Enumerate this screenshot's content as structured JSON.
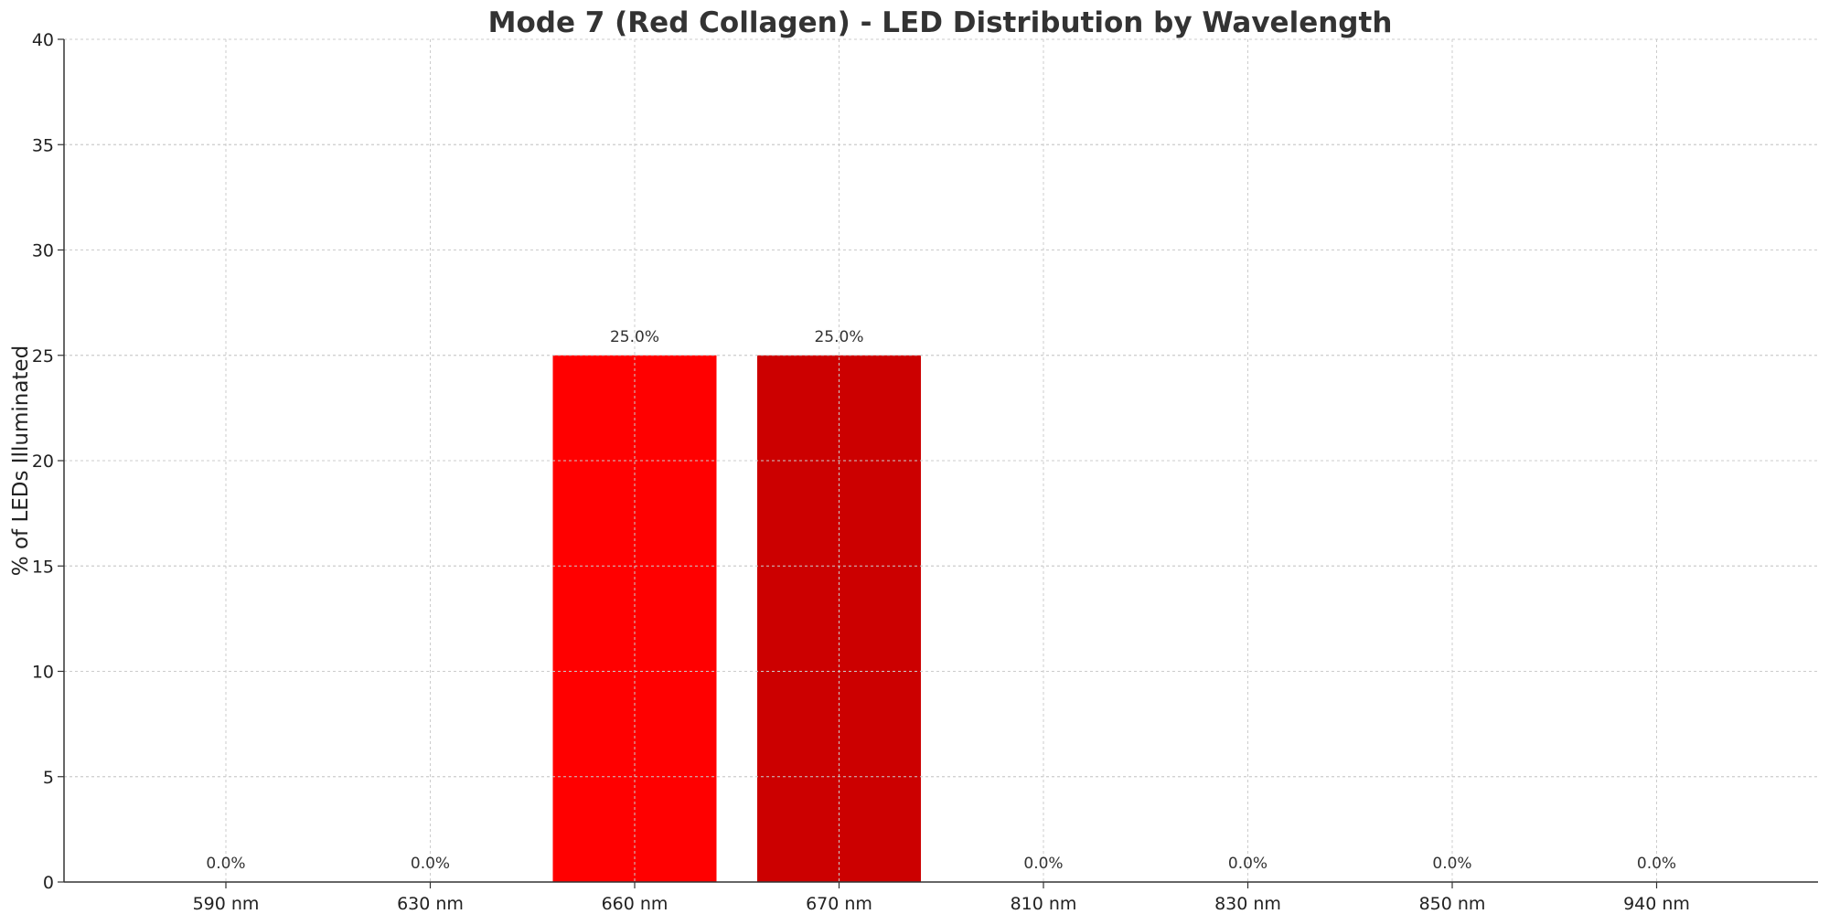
{
  "chart_data": {
    "type": "bar",
    "title": "Mode 7 (Red Collagen) - LED Distribution by Wavelength",
    "xlabel": "",
    "ylabel": "% of LEDs Illuminated",
    "categories": [
      "590 nm",
      "630 nm",
      "660 nm",
      "670 nm",
      "810 nm",
      "830 nm",
      "850 nm",
      "940 nm"
    ],
    "values": [
      0,
      0,
      25,
      25,
      0,
      0,
      0,
      0
    ],
    "data_labels": [
      "0.0%",
      "0.0%",
      "25.0%",
      "25.0%",
      "0.0%",
      "0.0%",
      "0.0%",
      "0.0%"
    ],
    "colors": [
      "#ffa500",
      "#ff4500",
      "#ff0000",
      "#cc0000",
      "#8b0000",
      "#800000",
      "#660000",
      "#4b0000"
    ],
    "ylim": [
      0,
      40
    ],
    "yticks": [
      0,
      5,
      10,
      15,
      20,
      25,
      30,
      35,
      40
    ],
    "grid": true,
    "legend": false
  }
}
